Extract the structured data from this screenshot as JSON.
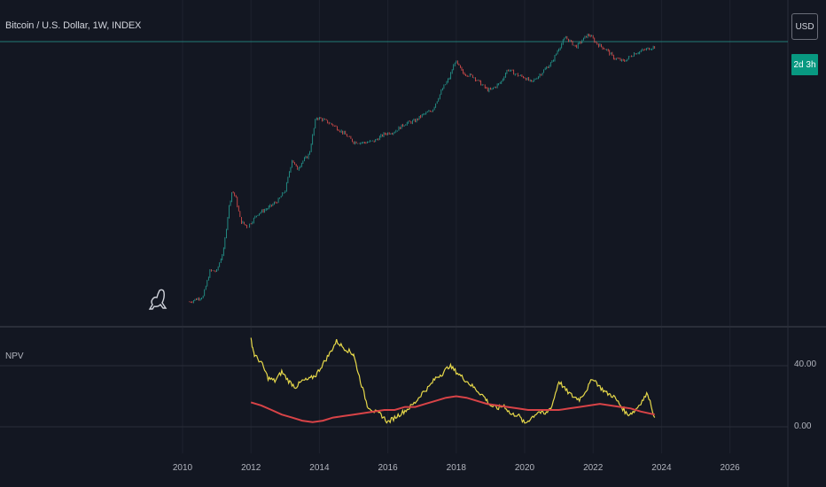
{
  "header": {
    "title": "Bitcoin / U.S. Dollar, 1W, INDEX",
    "currency_button": "USD",
    "countdown": "2d 3h"
  },
  "indicator_pane": {
    "label": "NPV",
    "y_ticks": [
      "40.00",
      "0.00"
    ]
  },
  "colors": {
    "background": "#131722",
    "candle_up": "#26a69a",
    "candle_down": "#ef5350",
    "npv_line": "#e6d84a",
    "npv_average": "#d84347",
    "last_price_line": "#26a69a"
  },
  "chart_data": [
    {
      "type": "line",
      "scale": "log",
      "title": "Bitcoin / U.S. Dollar, 1W, INDEX",
      "x": [
        2010.2,
        2010.4,
        2010.6,
        2010.8,
        2011.0,
        2011.2,
        2011.35,
        2011.45,
        2011.55,
        2011.7,
        2011.9,
        2012.2,
        2012.5,
        2012.8,
        2013.0,
        2013.2,
        2013.35,
        2013.5,
        2013.7,
        2013.9,
        2014.1,
        2014.4,
        2014.7,
        2015.0,
        2015.3,
        2015.6,
        2015.9,
        2016.2,
        2016.5,
        2016.8,
        2017.0,
        2017.3,
        2017.6,
        2017.8,
        2017.97,
        2018.2,
        2018.5,
        2018.9,
        2019.0,
        2019.3,
        2019.5,
        2019.8,
        2020.0,
        2020.2,
        2020.5,
        2020.8,
        2021.0,
        2021.2,
        2021.5,
        2021.8,
        2021.9,
        2022.1,
        2022.4,
        2022.6,
        2022.9,
        2023.2,
        2023.5,
        2023.8
      ],
      "y": [
        0.06,
        0.07,
        0.08,
        0.3,
        0.3,
        0.9,
        8,
        20,
        14,
        4,
        3,
        6,
        8,
        12,
        20,
        100,
        60,
        90,
        130,
        900,
        800,
        600,
        400,
        250,
        240,
        260,
        380,
        430,
        650,
        750,
        1000,
        1300,
        4000,
        7000,
        17000,
        9000,
        7500,
        3800,
        3700,
        5500,
        11000,
        8000,
        7200,
        5500,
        9200,
        16000,
        33000,
        58000,
        35000,
        62000,
        66000,
        42000,
        30000,
        20000,
        16500,
        25000,
        30000,
        36000
      ],
      "x_ticks": [
        "2010",
        "2012",
        "2014",
        "2016",
        "2018",
        "2020",
        "2022",
        "2024",
        "2026"
      ]
    },
    {
      "type": "line",
      "title": "NPV",
      "y_ticks": [
        "40.00",
        "0.00"
      ],
      "series": [
        {
          "x": [
            2012.0,
            2012.1,
            2012.3,
            2012.5,
            2012.7,
            2012.9,
            2013.1,
            2013.3,
            2013.5,
            2013.7,
            2013.9,
            2014.1,
            2014.3,
            2014.5,
            2014.7,
            2014.9,
            2015.0,
            2015.2,
            2015.4,
            2015.6,
            2015.8,
            2016.0,
            2016.2,
            2016.4,
            2016.6,
            2016.8,
            2017.0,
            2017.2,
            2017.4,
            2017.6,
            2017.8,
            2018.0,
            2018.2,
            2018.4,
            2018.6,
            2018.8,
            2019.0,
            2019.2,
            2019.4,
            2019.6,
            2019.8,
            2020.0,
            2020.2,
            2020.4,
            2020.6,
            2020.8,
            2021.0,
            2021.2,
            2021.4,
            2021.6,
            2021.8,
            2022.0,
            2022.2,
            2022.4,
            2022.6,
            2022.8,
            2023.0,
            2023.2,
            2023.4,
            2023.6,
            2023.8
          ],
          "y": [
            57,
            47,
            42,
            32,
            30,
            36,
            30,
            26,
            30,
            31,
            34,
            41,
            48,
            56,
            52,
            49,
            47,
            30,
            14,
            10,
            8,
            3,
            6,
            9,
            12,
            16,
            22,
            26,
            32,
            35,
            40,
            36,
            32,
            28,
            24,
            20,
            14,
            12,
            14,
            8,
            8,
            2,
            6,
            10,
            8,
            14,
            30,
            24,
            20,
            18,
            24,
            32,
            26,
            22,
            20,
            14,
            8,
            10,
            16,
            22,
            6
          ]
        },
        {
          "x": [
            2012.0,
            2012.3,
            2012.6,
            2012.9,
            2013.2,
            2013.5,
            2013.8,
            2014.1,
            2014.4,
            2014.7,
            2015.0,
            2015.3,
            2015.6,
            2015.9,
            2016.2,
            2016.5,
            2016.8,
            2017.1,
            2017.4,
            2017.7,
            2018.0,
            2018.3,
            2018.6,
            2018.9,
            2019.2,
            2019.5,
            2019.8,
            2020.1,
            2020.4,
            2020.7,
            2021.0,
            2021.3,
            2021.6,
            2021.9,
            2022.2,
            2022.5,
            2022.8,
            2023.1,
            2023.4,
            2023.8
          ],
          "y": [
            16,
            14,
            11,
            8,
            6,
            4,
            3,
            4,
            6,
            7,
            8,
            9,
            10,
            11,
            11,
            13,
            13,
            15,
            17,
            19,
            20,
            19,
            17,
            15,
            14,
            13,
            12,
            11,
            11,
            11,
            11,
            12,
            13,
            14,
            15,
            14,
            13,
            12,
            10,
            8
          ]
        }
      ]
    }
  ]
}
